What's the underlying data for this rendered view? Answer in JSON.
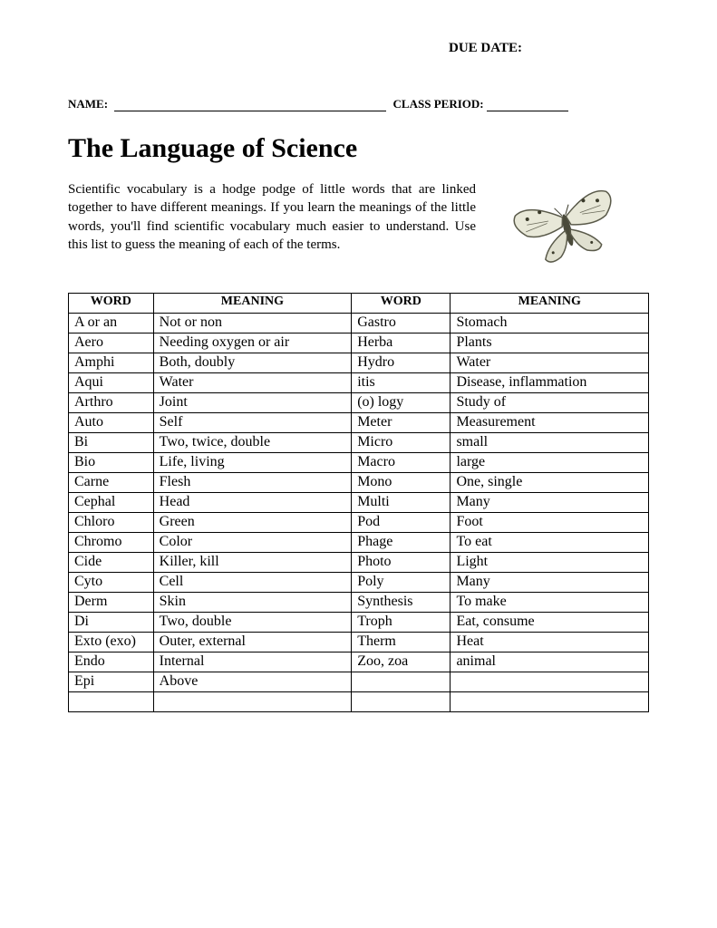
{
  "header": {
    "due_date_label": "DUE DATE:",
    "name_label": "NAME:",
    "class_period_label": "CLASS PERIOD:"
  },
  "title": "The Language of Science",
  "intro": "Scientific vocabulary is a hodge podge of little words that are linked together to have different meanings. If you learn the meanings of the little words, you'll find scientific vocabulary much easier to understand. Use this list to guess the meaning of each of the terms.",
  "table": {
    "headers": [
      "WORD",
      "MEANING",
      "WORD",
      "MEANING"
    ],
    "rows": [
      [
        "A or an",
        "Not or non",
        "Gastro",
        "Stomach"
      ],
      [
        "Aero",
        "Needing oxygen or air",
        "Herba",
        "Plants"
      ],
      [
        "Amphi",
        "Both, doubly",
        "Hydro",
        "Water"
      ],
      [
        "Aqui",
        "Water",
        "itis",
        "Disease, inflammation"
      ],
      [
        "Arthro",
        "Joint",
        "(o) logy",
        "Study of"
      ],
      [
        "Auto",
        "Self",
        "Meter",
        "Measurement"
      ],
      [
        "Bi",
        "Two, twice, double",
        "Micro",
        "small"
      ],
      [
        "Bio",
        "Life, living",
        "Macro",
        "large"
      ],
      [
        "Carne",
        "Flesh",
        "Mono",
        "One, single"
      ],
      [
        "Cephal",
        "Head",
        "Multi",
        "Many"
      ],
      [
        "Chloro",
        "Green",
        "Pod",
        "Foot"
      ],
      [
        "Chromo",
        "Color",
        "Phage",
        "To eat"
      ],
      [
        "Cide",
        "Killer, kill",
        "Photo",
        "Light"
      ],
      [
        "Cyto",
        "Cell",
        "Poly",
        "Many"
      ],
      [
        "Derm",
        "Skin",
        "Synthesis",
        "To make"
      ],
      [
        "Di",
        "Two, double",
        "Troph",
        "Eat, consume"
      ],
      [
        "Exto (exo)",
        "Outer, external",
        "Therm",
        "Heat"
      ],
      [
        "Endo",
        "Internal",
        "Zoo, zoa",
        "animal"
      ],
      [
        "Epi",
        "Above",
        "",
        ""
      ],
      [
        "",
        "",
        "",
        ""
      ]
    ]
  },
  "styling": {
    "background_color": "#ffffff",
    "page_bg": "#f0f0f0",
    "text_color": "#000000",
    "border_color": "#000000",
    "title_fontsize": 30,
    "body_fontsize": 15,
    "table_fontsize": 16,
    "header_fontsize": 14,
    "font_family": "Times New Roman"
  }
}
